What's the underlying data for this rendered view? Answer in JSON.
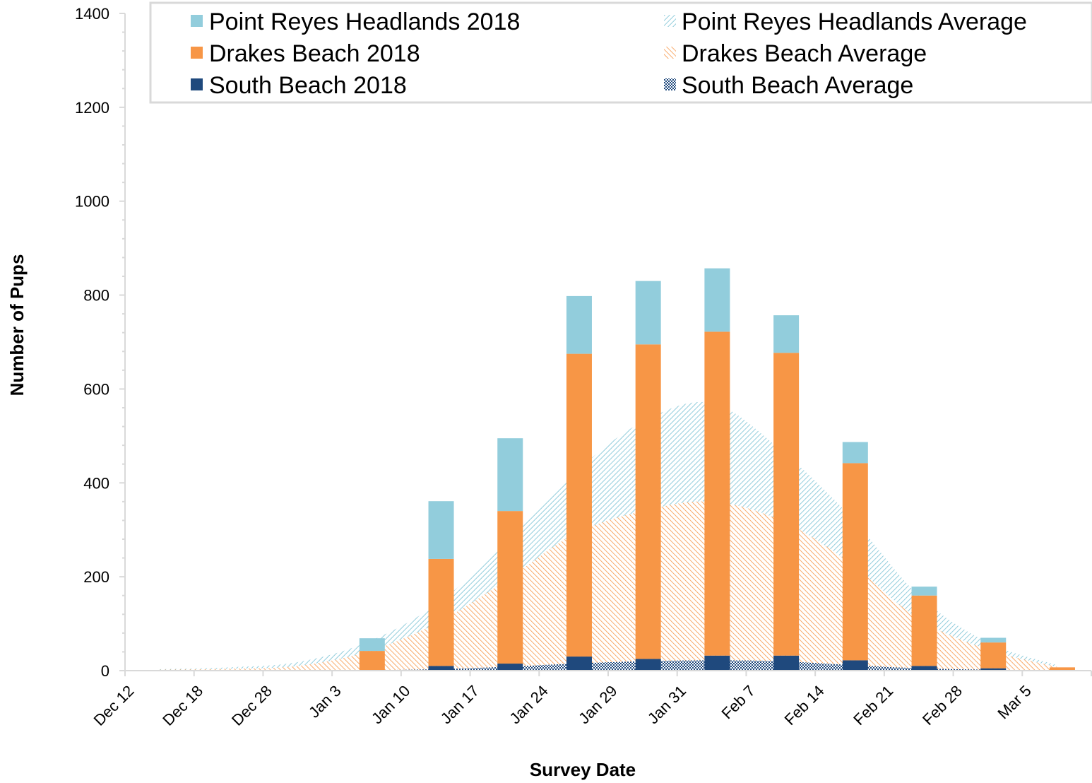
{
  "chart_data": {
    "type": "bar",
    "title": "",
    "xlabel": "Survey Date",
    "ylabel": "Number of Pups",
    "ylim": [
      0,
      1400
    ],
    "yticks": [
      0,
      200,
      400,
      600,
      800,
      1000,
      1200,
      1400
    ],
    "categories": [
      "Dec 12",
      "Dec 18",
      "Dec 28",
      "Jan 3",
      "Jan 10",
      "Jan 17",
      "Jan 24",
      "Jan 29",
      "Jan 31",
      "Feb 7",
      "Feb 14",
      "Feb 21",
      "Feb 28",
      "Mar 5"
    ],
    "legend_position": "top",
    "series": [
      {
        "name": "South Beach 2018",
        "kind": "stacked-bar",
        "color": "#1f497d",
        "values": [
          0,
          0,
          0,
          0,
          10,
          15,
          30,
          25,
          32,
          32,
          22,
          10,
          5,
          0
        ]
      },
      {
        "name": "Drakes Beach 2018",
        "kind": "stacked-bar",
        "color": "#f79646",
        "values": [
          0,
          0,
          0,
          42,
          228,
          325,
          645,
          670,
          690,
          645,
          420,
          150,
          55,
          7
        ]
      },
      {
        "name": "Point Reyes Headlands 2018",
        "kind": "stacked-bar",
        "color": "#92cddc",
        "values": [
          0,
          0,
          0,
          27,
          123,
          155,
          123,
          135,
          135,
          80,
          45,
          19,
          10,
          0
        ]
      },
      {
        "name": "South Beach Average",
        "kind": "area",
        "color": "#1f497d",
        "values": [
          0,
          0,
          0,
          1,
          3,
          8,
          15,
          20,
          22,
          20,
          12,
          5,
          2,
          0
        ]
      },
      {
        "name": "Drakes Beach Average",
        "kind": "area",
        "color": "#f79646",
        "values": [
          2,
          4,
          10,
          40,
          100,
          190,
          290,
          340,
          360,
          320,
          230,
          110,
          45,
          8
        ]
      },
      {
        "name": "Point Reyes Headlands Average",
        "kind": "area",
        "color": "#92cddc",
        "values": [
          3,
          7,
          18,
          60,
          140,
          270,
          420,
          530,
          570,
          470,
          330,
          160,
          60,
          12
        ]
      }
    ]
  }
}
